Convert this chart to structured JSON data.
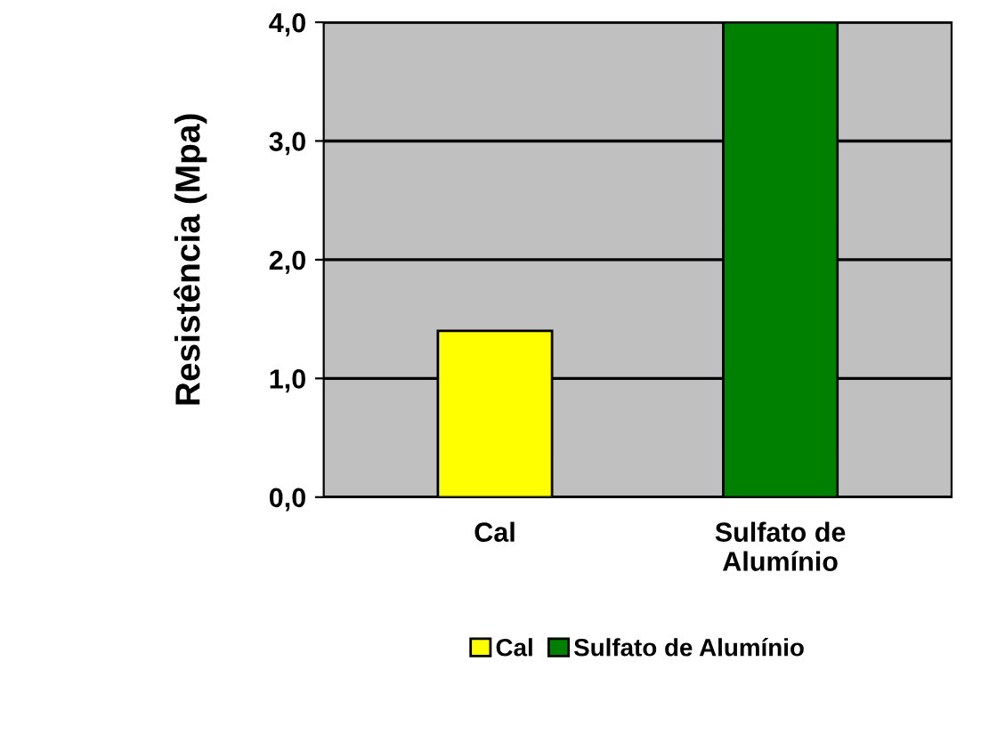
{
  "chart_data": {
    "type": "bar",
    "ylabel": "Resistência (Mpa)",
    "categories": [
      "Cal",
      "Sulfato de Alumínio"
    ],
    "series": [
      {
        "name": "Cal",
        "color": "#ffff00",
        "values": [
          1.4,
          null
        ]
      },
      {
        "name": "Sulfato de Alumínio",
        "color": "#008000",
        "values": [
          null,
          4.0
        ]
      }
    ],
    "ylim": [
      0,
      4.0
    ],
    "yticks": [
      {
        "value": 0,
        "label": "0,0"
      },
      {
        "value": 1,
        "label": "1,0"
      },
      {
        "value": 2,
        "label": "2,0"
      },
      {
        "value": 3,
        "label": "3,0"
      },
      {
        "value": 4,
        "label": "4,0"
      }
    ],
    "grid": "y",
    "legend": "bottom"
  }
}
